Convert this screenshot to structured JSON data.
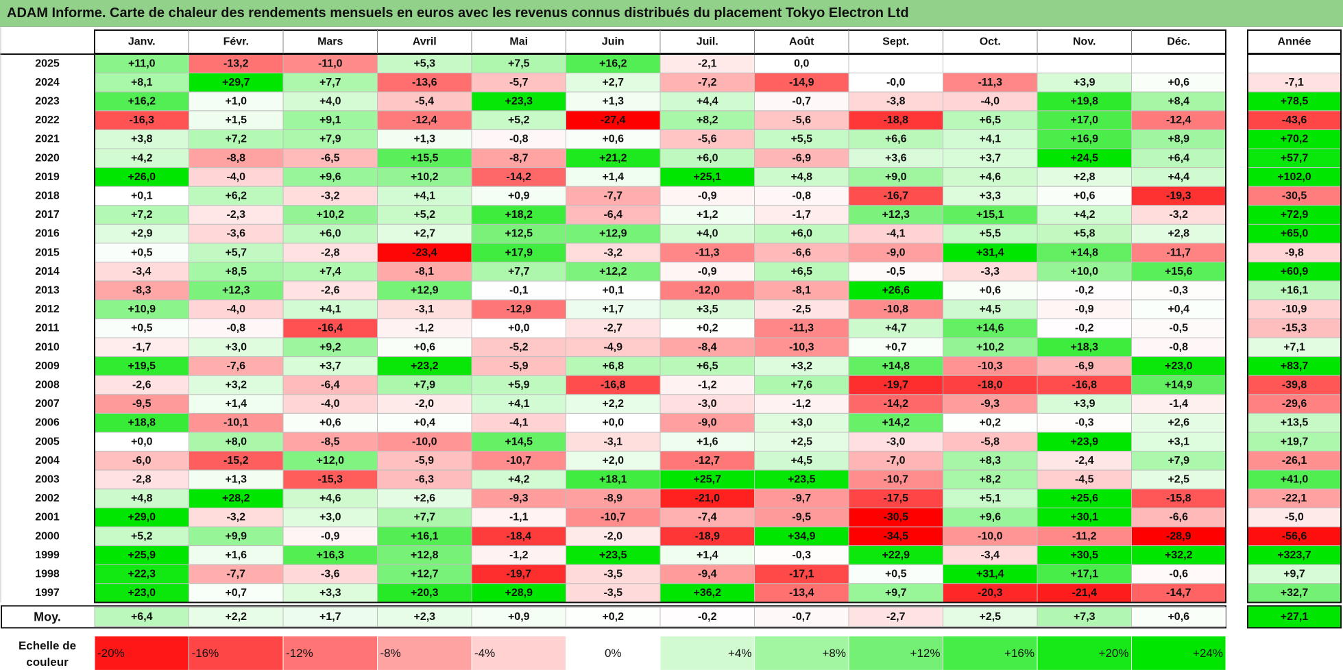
{
  "title": "ADAM Informe. Carte de chaleur des rendements mensuels en euros avec les revenus connus distribués du placement Tokyo Electron Ltd",
  "colors": {
    "title_bg": "#92d18a",
    "neg_max": "#ff0000",
    "pos_max": "#00e600",
    "neutral": "#ffffff"
  },
  "chart_data": {
    "type": "heatmap",
    "title": "ADAM Informe. Carte de chaleur des rendements mensuels en euros avec les revenus connus distribués du placement Tokyo Electron Ltd",
    "months": [
      "Janv.",
      "Févr.",
      "Mars",
      "Avril",
      "Mai",
      "Juin",
      "Juil.",
      "Août",
      "Sept.",
      "Oct.",
      "Nov.",
      "Déc."
    ],
    "year_header": "Année",
    "rows": [
      {
        "year": "2025",
        "values": [
          "+11,0",
          "-13,2",
          "-11,0",
          "+5,3",
          "+7,5",
          "+16,2",
          "-2,1",
          "0,0",
          "",
          "",
          "",
          ""
        ],
        "annual": ""
      },
      {
        "year": "2024",
        "values": [
          "+8,1",
          "+29,7",
          "+7,7",
          "-13,6",
          "-5,7",
          "+2,7",
          "-7,2",
          "-14,9",
          "-0,0",
          "-11,3",
          "+3,9",
          "+0,6"
        ],
        "annual": "-7,1"
      },
      {
        "year": "2023",
        "values": [
          "+16,2",
          "+1,0",
          "+4,0",
          "-5,4",
          "+23,3",
          "+1,3",
          "+4,4",
          "-0,7",
          "-3,8",
          "-4,0",
          "+19,8",
          "+8,4"
        ],
        "annual": "+78,5"
      },
      {
        "year": "2022",
        "values": [
          "-16,3",
          "+1,5",
          "+9,1",
          "-12,4",
          "+5,2",
          "-27,4",
          "+8,2",
          "-5,6",
          "-18,8",
          "+6,5",
          "+17,0",
          "-12,4"
        ],
        "annual": "-43,6"
      },
      {
        "year": "2021",
        "values": [
          "+3,8",
          "+7,2",
          "+7,9",
          "+1,3",
          "-0,8",
          "+0,6",
          "-5,6",
          "+5,5",
          "+6,6",
          "+4,1",
          "+16,9",
          "+8,9"
        ],
        "annual": "+70,2"
      },
      {
        "year": "2020",
        "values": [
          "+4,2",
          "-8,8",
          "-6,5",
          "+15,5",
          "-8,7",
          "+21,2",
          "+6,0",
          "-6,9",
          "+3,6",
          "+3,7",
          "+24,5",
          "+6,4"
        ],
        "annual": "+57,7"
      },
      {
        "year": "2019",
        "values": [
          "+26,0",
          "-4,0",
          "+9,6",
          "+10,2",
          "-14,2",
          "+1,4",
          "+25,1",
          "+4,8",
          "+9,0",
          "+4,6",
          "+2,8",
          "+4,4"
        ],
        "annual": "+102,0"
      },
      {
        "year": "2018",
        "values": [
          "+0,1",
          "+6,2",
          "-3,2",
          "+4,1",
          "+0,9",
          "-7,7",
          "-0,9",
          "-0,8",
          "-16,7",
          "+3,3",
          "+0,6",
          "-19,3"
        ],
        "annual": "-30,5"
      },
      {
        "year": "2017",
        "values": [
          "+7,2",
          "-2,3",
          "+10,2",
          "+5,2",
          "+18,2",
          "-6,4",
          "+1,2",
          "-1,7",
          "+12,3",
          "+15,1",
          "+4,2",
          "-3,2"
        ],
        "annual": "+72,9"
      },
      {
        "year": "2016",
        "values": [
          "+2,9",
          "-3,6",
          "+6,0",
          "+2,7",
          "+12,5",
          "+12,9",
          "+4,0",
          "+6,0",
          "-4,1",
          "+5,5",
          "+5,8",
          "+2,8"
        ],
        "annual": "+65,0"
      },
      {
        "year": "2015",
        "values": [
          "+0,5",
          "+5,7",
          "-2,8",
          "-23,4",
          "+17,9",
          "-3,2",
          "-11,3",
          "-6,6",
          "-9,0",
          "+31,4",
          "+14,8",
          "-11,7"
        ],
        "annual": "-9,8"
      },
      {
        "year": "2014",
        "values": [
          "-3,4",
          "+8,5",
          "+7,4",
          "-8,1",
          "+7,7",
          "+12,2",
          "-0,9",
          "+6,5",
          "-0,5",
          "-3,3",
          "+10,0",
          "+15,6"
        ],
        "annual": "+60,9"
      },
      {
        "year": "2013",
        "values": [
          "-8,3",
          "+12,3",
          "-2,6",
          "+12,9",
          "-0,1",
          "+0,1",
          "-12,0",
          "-8,1",
          "+26,6",
          "+0,6",
          "-0,2",
          "-0,3"
        ],
        "annual": "+16,1"
      },
      {
        "year": "2012",
        "values": [
          "+10,9",
          "-4,0",
          "+4,1",
          "-3,1",
          "-12,9",
          "+1,7",
          "+3,5",
          "-2,5",
          "-10,8",
          "+4,5",
          "-0,9",
          "+0,4"
        ],
        "annual": "-10,9"
      },
      {
        "year": "2011",
        "values": [
          "+0,5",
          "-0,8",
          "-16,4",
          "-1,2",
          "+0,0",
          "-2,7",
          "+0,2",
          "-11,3",
          "+4,7",
          "+14,6",
          "-0,2",
          "-0,5"
        ],
        "annual": "-15,3"
      },
      {
        "year": "2010",
        "values": [
          "-1,7",
          "+3,0",
          "+9,2",
          "+0,6",
          "-5,2",
          "-4,9",
          "-8,4",
          "-10,3",
          "+0,7",
          "+10,2",
          "+18,3",
          "-0,8"
        ],
        "annual": "+7,1"
      },
      {
        "year": "2009",
        "values": [
          "+19,5",
          "-7,6",
          "+3,7",
          "+23,2",
          "-5,9",
          "+6,8",
          "+6,5",
          "+3,2",
          "+14,8",
          "-10,3",
          "-6,9",
          "+23,0"
        ],
        "annual": "+83,7"
      },
      {
        "year": "2008",
        "values": [
          "-2,6",
          "+3,2",
          "-6,4",
          "+7,9",
          "+5,9",
          "-16,8",
          "-1,2",
          "+7,6",
          "-19,7",
          "-18,0",
          "-16,8",
          "+14,9"
        ],
        "annual": "-39,8"
      },
      {
        "year": "2007",
        "values": [
          "-9,5",
          "+1,4",
          "-4,0",
          "-2,0",
          "+4,1",
          "+2,2",
          "-3,0",
          "-1,2",
          "-14,2",
          "-9,3",
          "+3,9",
          "-1,4"
        ],
        "annual": "-29,6"
      },
      {
        "year": "2006",
        "values": [
          "+18,8",
          "-10,1",
          "+0,6",
          "+0,4",
          "-4,1",
          "+0,0",
          "-9,0",
          "+3,0",
          "+14,2",
          "+0,2",
          "-0,3",
          "+2,6"
        ],
        "annual": "+13,5"
      },
      {
        "year": "2005",
        "values": [
          "+0,0",
          "+8,0",
          "-8,5",
          "-10,0",
          "+14,5",
          "-3,1",
          "+1,6",
          "+2,5",
          "-3,0",
          "-5,8",
          "+23,9",
          "+3,1"
        ],
        "annual": "+19,7"
      },
      {
        "year": "2004",
        "values": [
          "-6,0",
          "-15,2",
          "+12,0",
          "-5,9",
          "-10,7",
          "+2,0",
          "-12,7",
          "+4,5",
          "-7,0",
          "+8,3",
          "-2,4",
          "+7,9"
        ],
        "annual": "-26,1"
      },
      {
        "year": "2003",
        "values": [
          "-2,8",
          "+1,3",
          "-15,3",
          "-6,3",
          "+4,2",
          "+18,1",
          "+25,7",
          "+23,5",
          "-10,7",
          "+8,2",
          "-4,5",
          "+2,5"
        ],
        "annual": "+41,0"
      },
      {
        "year": "2002",
        "values": [
          "+4,8",
          "+28,2",
          "+4,6",
          "+2,6",
          "-9,3",
          "-8,9",
          "-21,0",
          "-9,7",
          "-17,5",
          "+5,1",
          "+25,6",
          "-15,8"
        ],
        "annual": "-22,1"
      },
      {
        "year": "2001",
        "values": [
          "+29,0",
          "-3,2",
          "+3,0",
          "+7,7",
          "-1,1",
          "-10,7",
          "-7,4",
          "-9,5",
          "-30,5",
          "+9,6",
          "+30,1",
          "-6,6"
        ],
        "annual": "-5,0"
      },
      {
        "year": "2000",
        "values": [
          "+5,2",
          "+9,9",
          "-0,9",
          "+16,1",
          "-18,4",
          "-2,0",
          "-18,9",
          "+34,9",
          "-34,5",
          "-10,0",
          "-11,2",
          "-28,9"
        ],
        "annual": "-56,6"
      },
      {
        "year": "1999",
        "values": [
          "+25,9",
          "+1,6",
          "+16,3",
          "+12,8",
          "-1,2",
          "+23,5",
          "+1,4",
          "-0,3",
          "+22,9",
          "-3,4",
          "+30,5",
          "+32,2"
        ],
        "annual": "+323,7"
      },
      {
        "year": "1998",
        "values": [
          "+22,3",
          "-7,7",
          "-3,6",
          "+12,7",
          "-19,7",
          "-3,5",
          "-9,4",
          "-17,1",
          "+0,5",
          "+31,4",
          "+17,1",
          "-0,6"
        ],
        "annual": "+9,7"
      },
      {
        "year": "1997",
        "values": [
          "+23,0",
          "+0,7",
          "+3,3",
          "+20,3",
          "+28,9",
          "-3,5",
          "+36,2",
          "-13,4",
          "+9,7",
          "-20,3",
          "-21,4",
          "-14,7"
        ],
        "annual": "+32,7"
      }
    ],
    "average": {
      "label": "Moy.",
      "values": [
        "+6,4",
        "+2,2",
        "+1,7",
        "+2,3",
        "+0,9",
        "+0,2",
        "-0,2",
        "-0,7",
        "-2,7",
        "+2,5",
        "+7,3",
        "+0,6"
      ],
      "annual": "+27,1"
    },
    "scale": {
      "label_line1": "Echelle de",
      "label_line2": "couleur",
      "steps": [
        "-20%",
        "-16%",
        "-12%",
        "-8%",
        "-4%",
        "0%",
        "+4%",
        "+8%",
        "+12%",
        "+16%",
        "+20%",
        "+24%"
      ]
    }
  }
}
